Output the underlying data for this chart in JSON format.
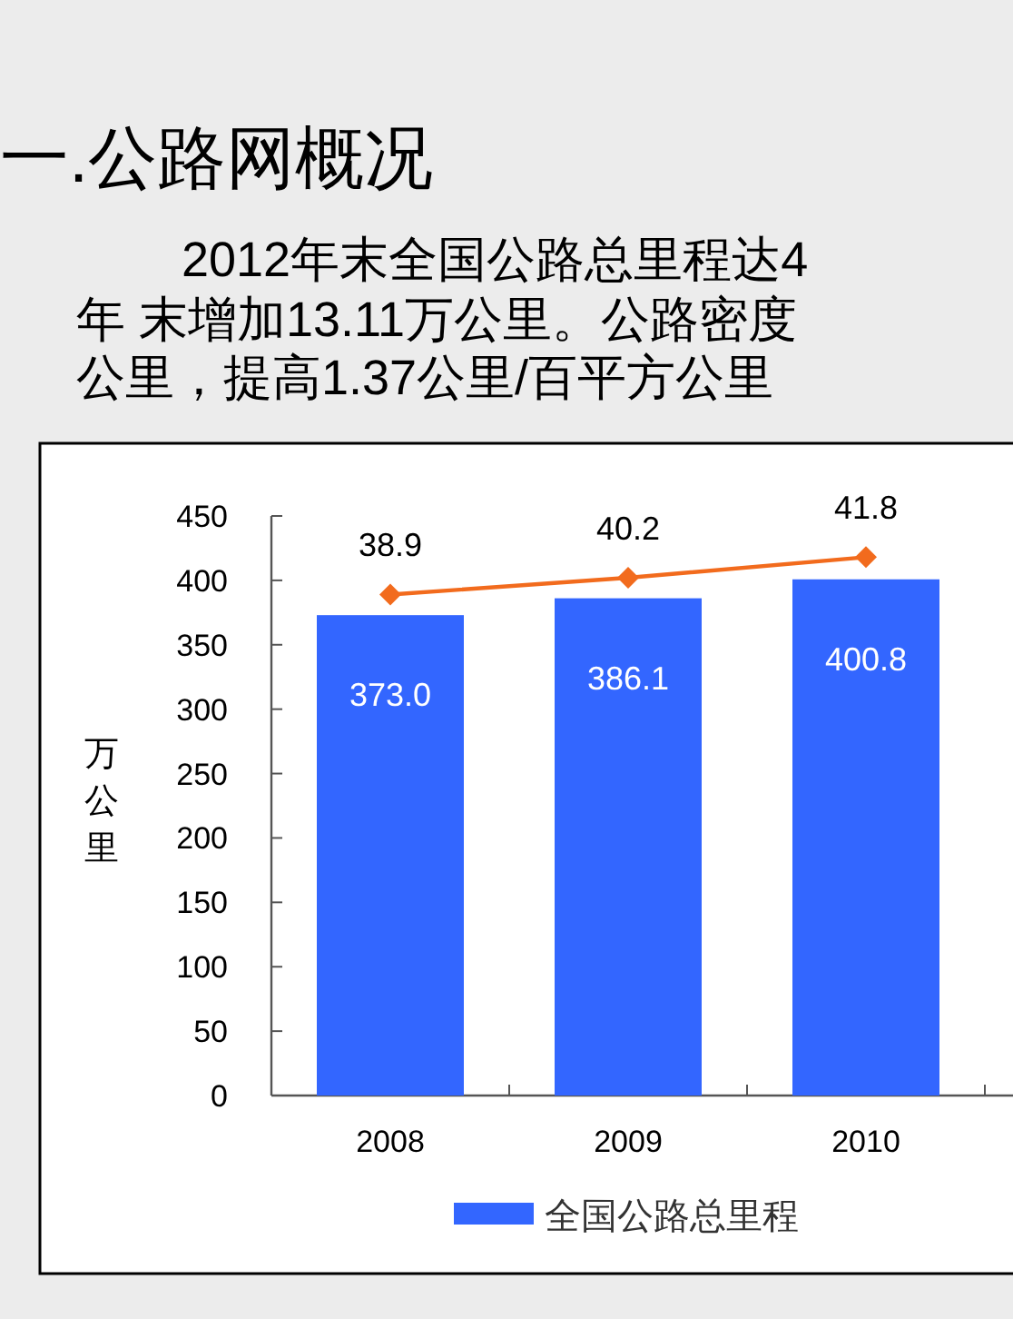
{
  "chart_data": {
    "type": "bar",
    "title": "一.公路网概况",
    "annotations": [
      "2012年末全国公路总里程达4",
      "年 末增加13.11万公里。公路密度",
      "公里，提高1.37公里/百平方公里"
    ],
    "ylabel": "万公里",
    "categories": [
      "2008",
      "2009",
      "2010"
    ],
    "series": [
      {
        "name": "全国公路总里程",
        "color": "#3366ff",
        "values": [
          373.0,
          386.1,
          400.8
        ],
        "value_labels": [
          "373.0",
          "386.1",
          "400.8"
        ]
      },
      {
        "type": "line",
        "axis": "y2",
        "color": "#f26b1d",
        "marker": "diamond",
        "values": [
          38.9,
          40.2,
          41.8
        ],
        "value_labels": [
          "38.9",
          "40.2",
          "41.8"
        ]
      }
    ],
    "ylim": [
      0,
      450
    ],
    "yticks": [
      0,
      50,
      100,
      150,
      200,
      250,
      300,
      350,
      400,
      450
    ],
    "y2lim": [
      0,
      45
    ],
    "legend": "bottom"
  }
}
